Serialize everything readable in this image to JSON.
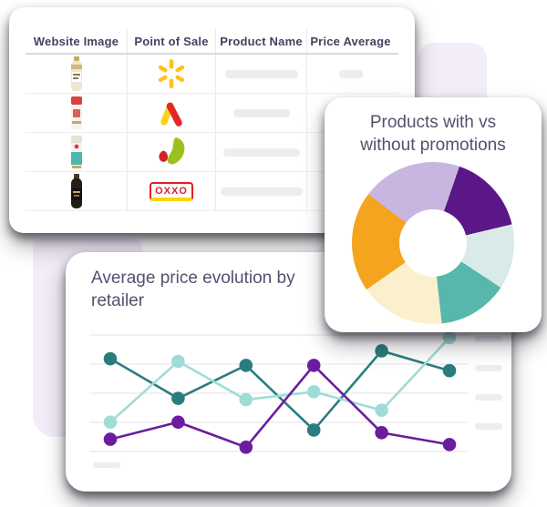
{
  "table_card": {
    "columns": [
      "Website Image",
      "Point of Sale",
      "Product Name",
      "Price Average"
    ],
    "rows": [
      {
        "image": "light-bottle",
        "retailer": "walmart",
        "name_pill_w": 80,
        "price_pill_w": 26
      },
      {
        "image": "red-carton",
        "retailer": "chevron",
        "name_pill_w": 62,
        "price_pill_w": 26
      },
      {
        "image": "teal-carton",
        "retailer": "heart-leaf",
        "name_pill_w": 84,
        "price_pill_w": 26
      },
      {
        "image": "dark-bottle",
        "retailer": "oxxo",
        "retailer_text": "OXXO",
        "name_pill_w": 90,
        "price_pill_w": 26
      }
    ]
  },
  "donut_card": {
    "title": "Products with vs without promotions"
  },
  "line_card": {
    "title": "Average price evolution by retailer"
  },
  "colors": {
    "title_text": "#55506e",
    "header_text": "#454161",
    "placeholder": "#ededf1",
    "gridline": "#f1f1f4",
    "bg_shape": "#f2edf8",
    "walmart_yellow": "#ffc220",
    "oxxo_red": "#e01e25",
    "oxxo_yellow": "#ffd400"
  },
  "chart_data": [
    {
      "type": "pie",
      "variant": "donut",
      "title": "Products with vs without promotions",
      "start_angle_deg": 19,
      "legend": "none",
      "labels": "none",
      "segments": [
        {
          "name": "dark-purple",
          "color": "#5b1687",
          "percent": 16
        },
        {
          "name": "mint",
          "color": "#d9eae8",
          "percent": 13
        },
        {
          "name": "teal",
          "color": "#58b7ac",
          "percent": 14
        },
        {
          "name": "cream",
          "color": "#faf0cc",
          "percent": 17
        },
        {
          "name": "orange",
          "color": "#f4a41d",
          "percent": 20
        },
        {
          "name": "lavender",
          "color": "#c9b6e0",
          "percent": 20
        }
      ]
    },
    {
      "type": "line",
      "title": "Average price evolution by retailer",
      "x": [
        1,
        2,
        3,
        4,
        5,
        6
      ],
      "x_tick_labels": "none — placeholder bar shown bottom-left",
      "y_axis": {
        "range": [
          0,
          10
        ],
        "gridlines": 5,
        "labels": "none — 4 placeholder bars on right edge"
      },
      "grid": true,
      "series": [
        {
          "name": "retailer-dark-teal",
          "color": "#2a7d7e",
          "values": [
            7.3,
            4.3,
            6.8,
            1.9,
            7.9,
            6.4
          ]
        },
        {
          "name": "retailer-light-teal",
          "color": "#9fdcd8",
          "values": [
            2.5,
            7.1,
            4.2,
            4.8,
            3.4,
            8.9
          ]
        },
        {
          "name": "retailer-purple",
          "color": "#6b1d9e",
          "values": [
            1.2,
            2.5,
            0.6,
            6.8,
            1.7,
            0.8
          ]
        }
      ]
    }
  ]
}
